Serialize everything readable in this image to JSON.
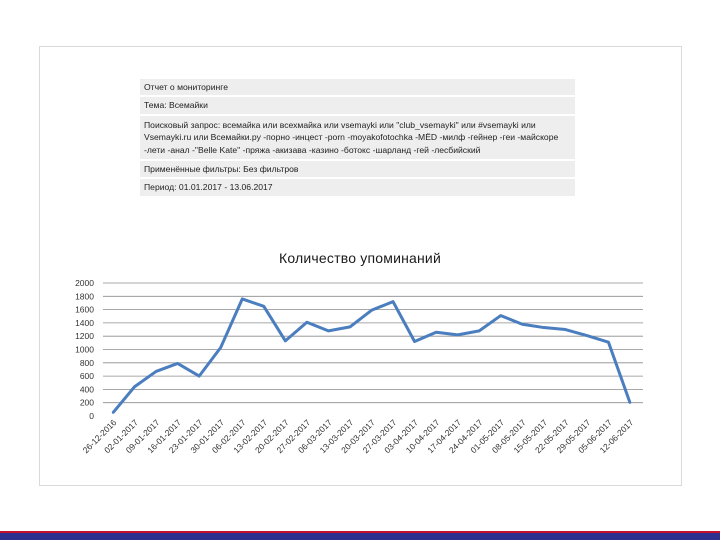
{
  "report": {
    "line1": "Отчет о мониторинге",
    "line2": "Тема: Всемайки",
    "line3": "Поисковый запрос: всемайка или всехмайка или vsemayki или \"club_vsemayki\" или #vsemayki  или Vsemayki.ru или Всемайки.ру -порно -инцест -porn -moyakofotochka -МЁD -милф -гейнер -геи -майскоре -лети -анал -\"Belle Kate\" -пряжа -акизава -казино -ботокс -шарланд -гей -лесбийский",
    "line4": "Применённые фильтры: Без фильтров",
    "line5": "Период: 01.01.2017 - 13.06.2017"
  },
  "colors": {
    "line": "#4a7ebf",
    "grid": "#8c8c8c",
    "footer": "#2e2f8f",
    "footer_accent": "#c8102e"
  },
  "chart_data": {
    "type": "line",
    "title": "Количество упоминаний",
    "xlabel": "",
    "ylabel": "",
    "ylim": [
      0,
      2000
    ],
    "yticks": [
      0,
      200,
      400,
      600,
      800,
      1000,
      1200,
      1400,
      1600,
      1800,
      2000
    ],
    "grid": true,
    "categories": [
      "26-12-2016",
      "02-01-2017",
      "09-01-2017",
      "16-01-2017",
      "23-01-2017",
      "30-01-2017",
      "06-02-2017",
      "13-02-2017",
      "20-02-2017",
      "27-02-2017",
      "06-03-2017",
      "13-03-2017",
      "20-03-2017",
      "27-03-2017",
      "03-04-2017",
      "10-04-2017",
      "17-04-2017",
      "24-04-2017",
      "01-05-2017",
      "08-05-2017",
      "15-05-2017",
      "22-05-2017",
      "29-05-2017",
      "05-06-2017",
      "12-06-2017"
    ],
    "series": [
      {
        "values": [
          50,
          440,
          670,
          790,
          600,
          1030,
          1760,
          1650,
          1130,
          1410,
          1280,
          1340,
          1590,
          1720,
          1120,
          1260,
          1220,
          1280,
          1510,
          1380,
          1330,
          1300,
          1210,
          1110,
          200
        ]
      }
    ]
  }
}
